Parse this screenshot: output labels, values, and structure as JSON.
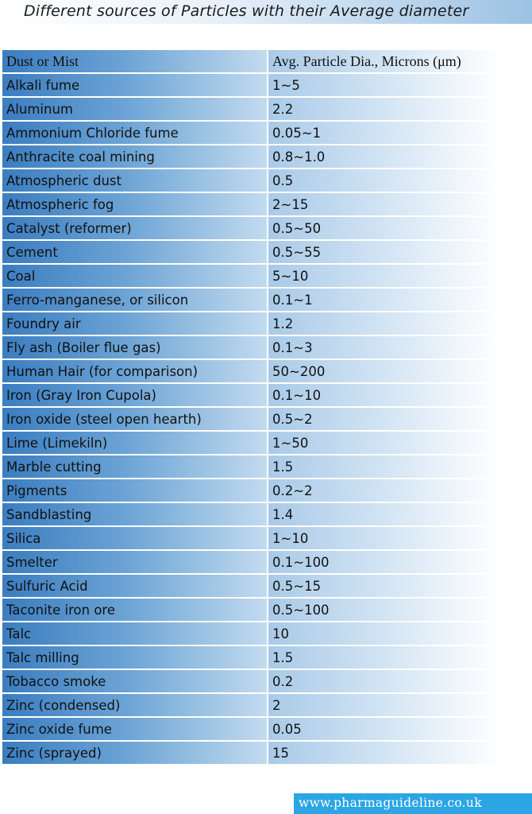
{
  "title": "Different sources of Particles with their  Average diameter",
  "table": {
    "headers": [
      "Dust or Mist",
      "Avg.  Particle Dia., Microns (μm)"
    ],
    "rows": [
      {
        "source": "Alkali fume",
        "diameter": "1~5"
      },
      {
        "source": "Aluminum",
        "diameter": "2.2"
      },
      {
        "source": "Ammonium Chloride fume",
        "diameter": "0.05~1"
      },
      {
        "source": "Anthracite coal mining",
        "diameter": "0.8~1.0"
      },
      {
        "source": "Atmospheric dust",
        "diameter": "0.5"
      },
      {
        "source": "Atmospheric fog",
        "diameter": "2~15"
      },
      {
        "source": "Catalyst (reformer)",
        "diameter": "0.5~50"
      },
      {
        "source": "Cement",
        "diameter": "0.5~55"
      },
      {
        "source": "Coal",
        "diameter": "5~10"
      },
      {
        "source": "Ferro-manganese, or silicon",
        "diameter": "0.1~1"
      },
      {
        "source": "Foundry air",
        "diameter": "1.2"
      },
      {
        "source": "Fly ash (Boiler flue gas)",
        "diameter": "0.1~3"
      },
      {
        "source": "Human Hair (for comparison)",
        "diameter": "50~200"
      },
      {
        "source": "Iron (Gray Iron Cupola)",
        "diameter": "0.1~10"
      },
      {
        "source": "Iron oxide (steel open hearth)",
        "diameter": "0.5~2"
      },
      {
        "source": "Lime (Limekiln)",
        "diameter": "1~50"
      },
      {
        "source": "Marble cutting",
        "diameter": "1.5"
      },
      {
        "source": "Pigments",
        "diameter": "0.2~2"
      },
      {
        "source": "Sandblasting",
        "diameter": "1.4"
      },
      {
        "source": "Silica",
        "diameter": "1~10"
      },
      {
        "source": "Smelter",
        "diameter": "0.1~100"
      },
      {
        "source": "Sulfuric Acid",
        "diameter": "0.5~15"
      },
      {
        "source": "Taconite iron ore",
        "diameter": "0.5~100"
      },
      {
        "source": "Talc",
        "diameter": "10"
      },
      {
        "source": "Talc milling",
        "diameter": "1.5"
      },
      {
        "source": "Tobacco smoke",
        "diameter": "0.2"
      },
      {
        "source": "Zinc (condensed)",
        "diameter": "2"
      },
      {
        "source": "Zinc oxide fume",
        "diameter": "0.05"
      },
      {
        "source": "Zinc (sprayed)",
        "diameter": "15"
      }
    ]
  },
  "footer": {
    "website": "www.pharmaguideline.co.uk"
  },
  "colors": {
    "title_gradient_end": "#9cc2e3",
    "column1_dark": "#3b7dc0",
    "column2_light": "#d7e7f5",
    "footer_bg": "#2ba5e3"
  }
}
